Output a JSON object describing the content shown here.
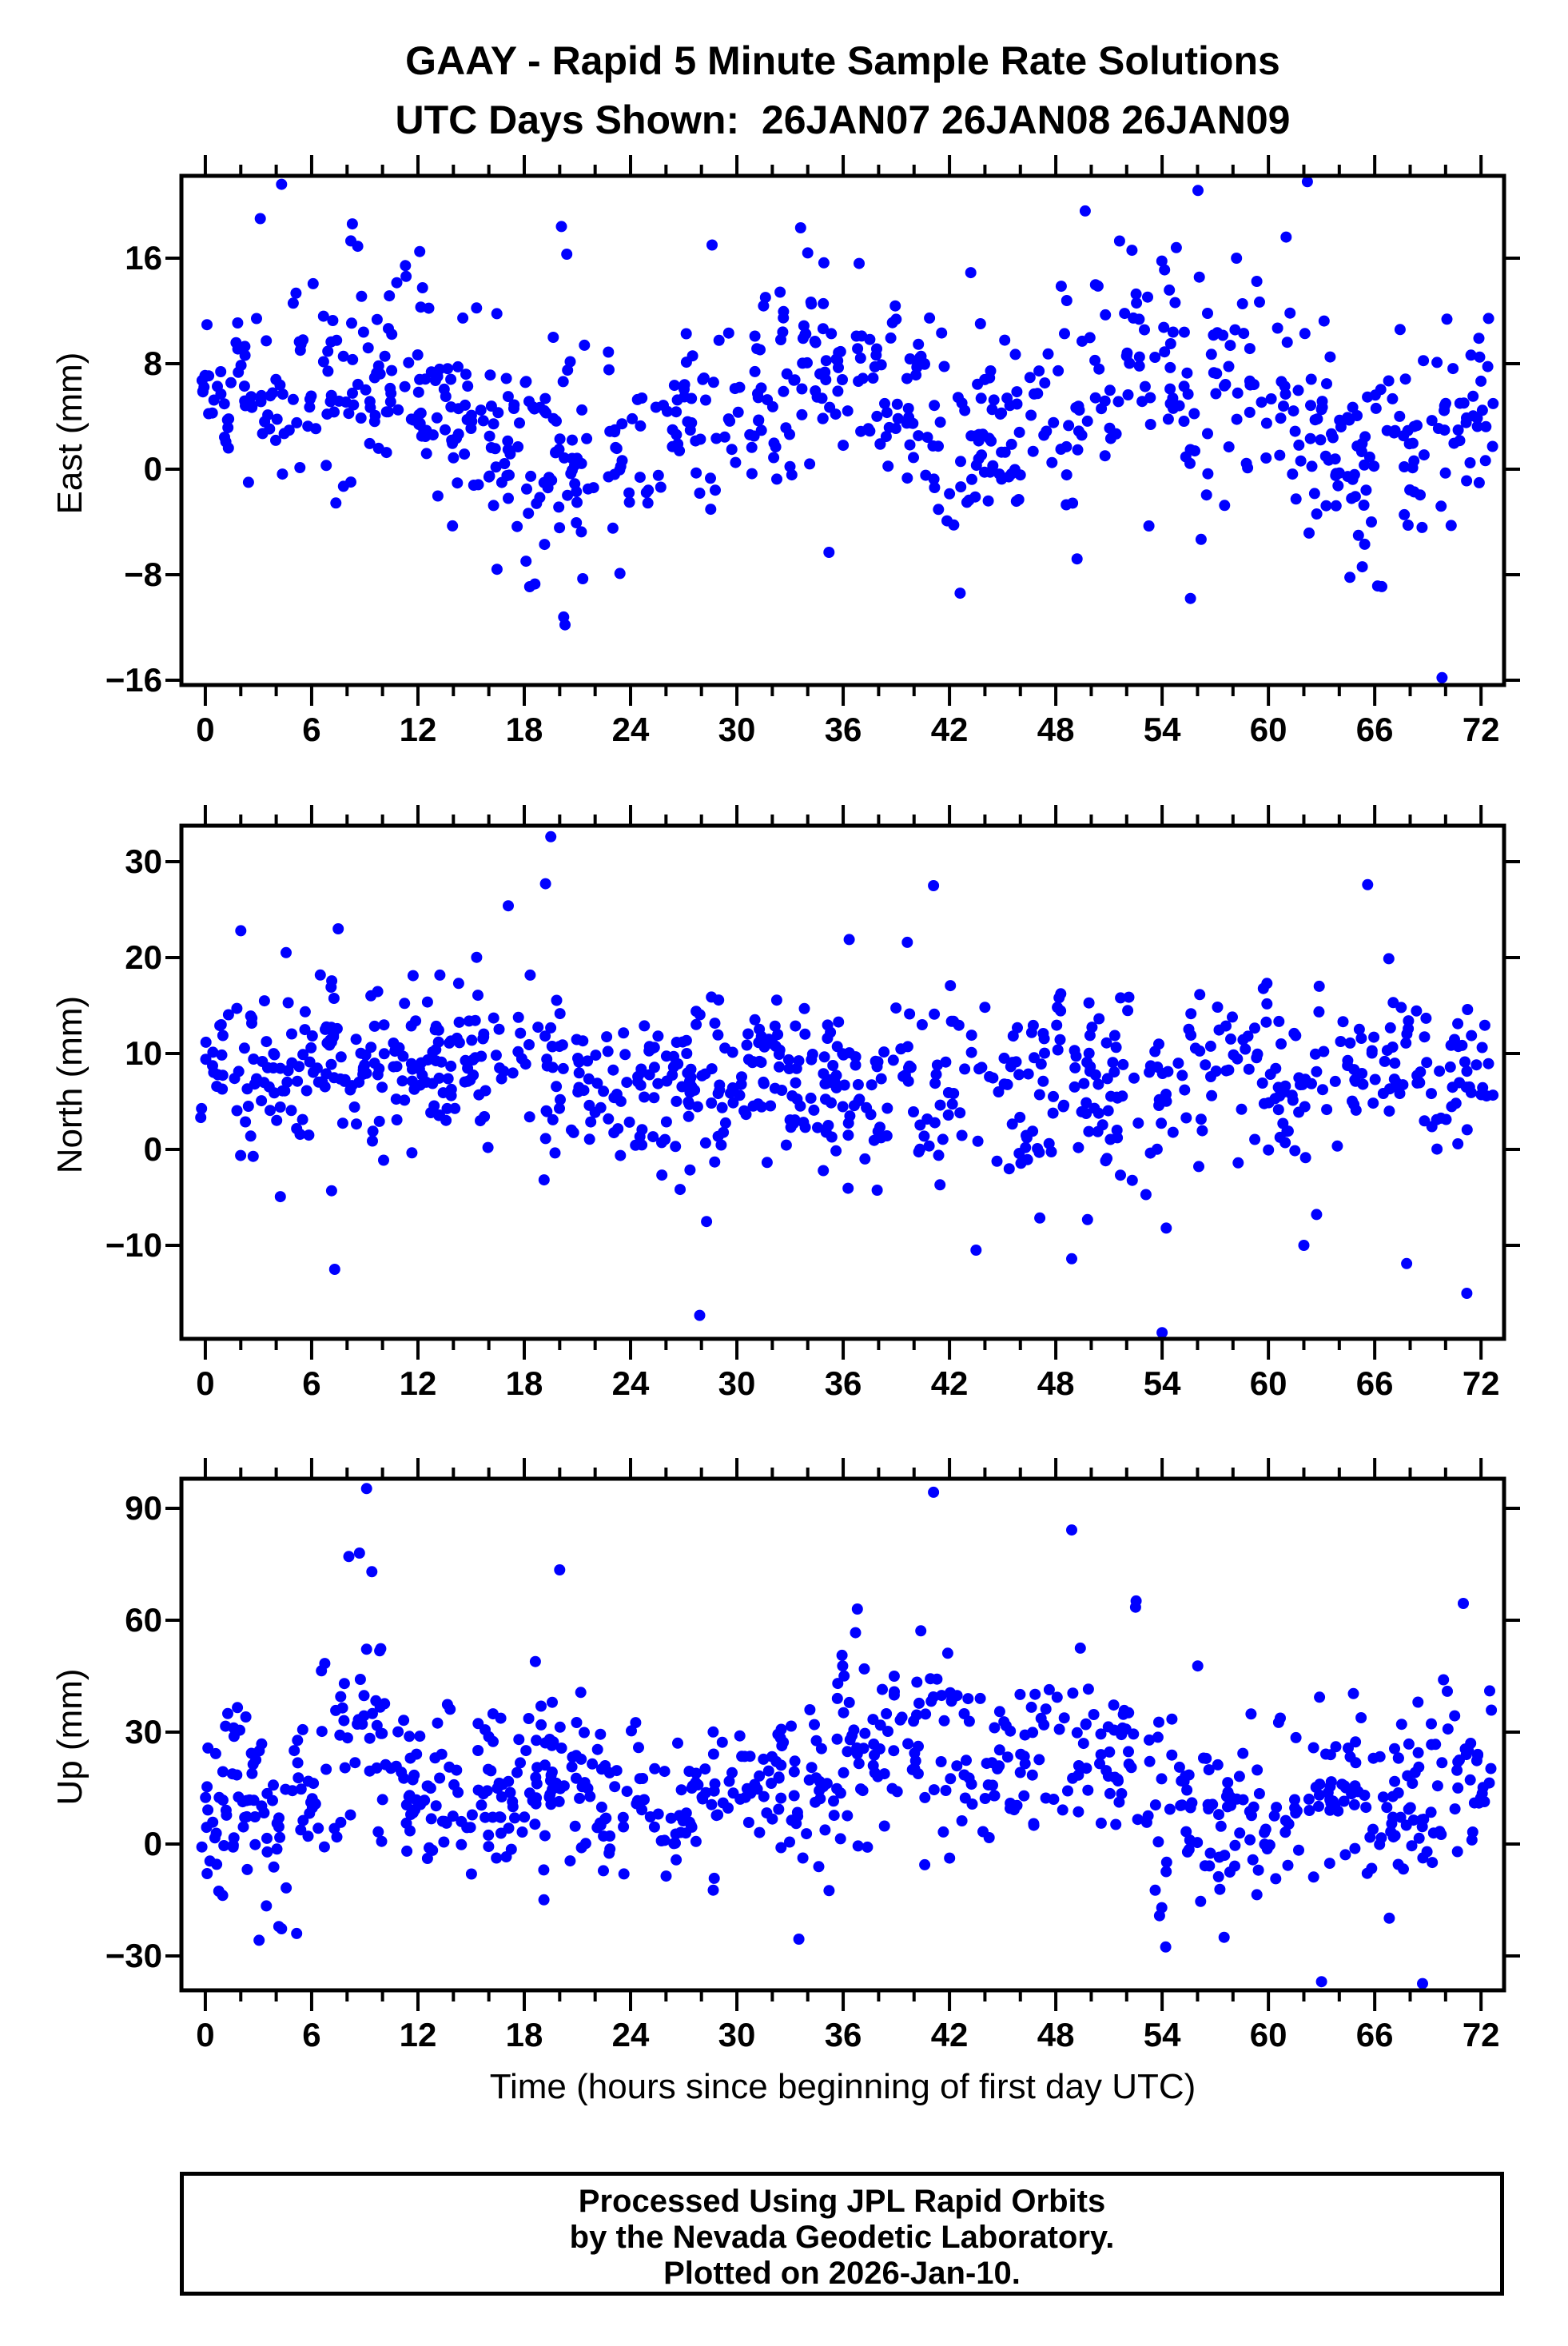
{
  "title": {
    "line1": "GAAY - Rapid 5 Minute Sample Rate Solutions",
    "line2": "UTC Days Shown:  26JAN07 26JAN08 26JAN09"
  },
  "footer": {
    "lines": [
      "Processed Using JPL Rapid Orbits",
      "by the Nevada Geodetic Laboratory.",
      "Plotted on 2026-Jan-10."
    ]
  },
  "chart_data": {
    "type": "scatter",
    "title": "GAAY - Rapid 5 Minute Sample Rate Solutions",
    "subtitle": "UTC Days Shown:  26JAN07 26JAN08 26JAN09",
    "marker": {
      "color": "#0000FF",
      "radius_px": 7
    },
    "frame_color": "#000000",
    "x": {
      "label": "Time (hours since beginning of first day UTC)",
      "lim": [
        -1.35,
        73.3
      ],
      "major_ticks": [
        0,
        6,
        12,
        18,
        24,
        30,
        36,
        42,
        48,
        54,
        60,
        66,
        72
      ],
      "minor_step": 2,
      "sample_interval_hours": 0.0833
    },
    "panels": [
      {
        "name": "East",
        "ylabel": "East (mm)",
        "ylim": [
          -16.36,
          22.24
        ],
        "yticks": [
          -16,
          -8,
          0,
          8,
          16
        ],
        "n_points": 780,
        "seed": 42,
        "mean_sd_curve": [
          [
            0,
            5.5,
            2.5
          ],
          [
            2,
            6,
            3
          ],
          [
            4,
            6.5,
            3.5
          ],
          [
            6,
            6,
            4
          ],
          [
            8,
            7,
            4.5
          ],
          [
            10,
            6.5,
            4
          ],
          [
            12,
            5.5,
            4
          ],
          [
            14,
            4,
            3.5
          ],
          [
            16,
            3,
            4
          ],
          [
            18,
            1.5,
            4.5
          ],
          [
            20,
            0.5,
            5
          ],
          [
            22,
            2,
            4
          ],
          [
            24,
            2.5,
            3
          ],
          [
            26,
            3,
            3
          ],
          [
            28,
            3,
            3.5
          ],
          [
            30,
            4,
            3.5
          ],
          [
            32,
            5.5,
            4
          ],
          [
            34,
            8.5,
            3.5
          ],
          [
            36,
            7,
            3.5
          ],
          [
            38,
            5,
            3.5
          ],
          [
            40,
            4,
            3.5
          ],
          [
            42,
            3,
            4
          ],
          [
            44,
            3.5,
            4
          ],
          [
            46,
            3.5,
            4
          ],
          [
            48,
            5,
            4.5
          ],
          [
            50,
            7,
            4.5
          ],
          [
            52,
            8,
            4
          ],
          [
            54,
            7,
            4
          ],
          [
            56,
            5.5,
            4
          ],
          [
            58,
            6,
            4
          ],
          [
            60,
            6.5,
            4
          ],
          [
            62,
            4,
            4
          ],
          [
            64,
            1.5,
            4
          ],
          [
            66,
            0.5,
            4
          ],
          [
            68,
            2,
            4.5
          ],
          [
            70,
            4.5,
            4
          ],
          [
            72,
            5,
            3
          ]
        ],
        "outliers": [
          [
            4.3,
            21.6
          ],
          [
            3.1,
            19.0
          ],
          [
            8.3,
            18.6
          ],
          [
            8.6,
            16.9
          ],
          [
            12.1,
            16.5
          ],
          [
            20.1,
            18.4
          ],
          [
            20.4,
            16.3
          ],
          [
            28.6,
            17.0
          ],
          [
            33.6,
            18.3
          ],
          [
            34.0,
            16.4
          ],
          [
            36.9,
            15.6
          ],
          [
            43.2,
            14.9
          ],
          [
            51.6,
            17.3
          ],
          [
            52.3,
            16.6
          ],
          [
            54.8,
            16.8
          ],
          [
            58.2,
            16.0
          ],
          [
            62.2,
            21.8
          ],
          [
            61.0,
            17.6
          ],
          [
            20.3,
            -11.8
          ],
          [
            18.6,
            -8.7
          ],
          [
            21.3,
            -8.3
          ],
          [
            42.6,
            -9.4
          ],
          [
            55.6,
            -9.8
          ],
          [
            64.6,
            -8.2
          ],
          [
            66.4,
            -8.9
          ],
          [
            69.8,
            -15.8
          ],
          [
            23.4,
            -7.9
          ],
          [
            35.2,
            -6.3
          ],
          [
            49.2,
            -6.8
          ],
          [
            65.3,
            -7.4
          ]
        ]
      },
      {
        "name": "North",
        "ylabel": "North (mm)",
        "ylim": [
          -19.75,
          33.75
        ],
        "yticks": [
          -10,
          0,
          10,
          20,
          30
        ],
        "n_points": 800,
        "seed": 1337,
        "mean_sd_curve": [
          [
            0,
            8,
            2.5
          ],
          [
            2,
            8.5,
            4
          ],
          [
            4,
            7,
            4.5
          ],
          [
            6,
            8.5,
            4.5
          ],
          [
            8,
            9.5,
            4.5
          ],
          [
            10,
            8.5,
            4
          ],
          [
            12,
            8,
            4
          ],
          [
            14,
            8.5,
            4.5
          ],
          [
            16,
            9,
            5
          ],
          [
            18,
            9.5,
            5
          ],
          [
            20,
            8,
            4.5
          ],
          [
            22,
            6.5,
            4
          ],
          [
            24,
            6,
            4
          ],
          [
            26,
            6,
            4.5
          ],
          [
            28,
            6.5,
            5
          ],
          [
            30,
            7,
            4.5
          ],
          [
            32,
            8,
            4.5
          ],
          [
            34,
            7,
            4.5
          ],
          [
            36,
            6,
            4.5
          ],
          [
            38,
            6,
            4.5
          ],
          [
            40,
            6,
            5
          ],
          [
            42,
            5.5,
            5
          ],
          [
            44,
            6,
            4.5
          ],
          [
            46,
            6,
            4.5
          ],
          [
            48,
            7,
            5
          ],
          [
            50,
            7,
            5
          ],
          [
            52,
            6,
            5.5
          ],
          [
            54,
            6,
            5
          ],
          [
            56,
            8,
            5
          ],
          [
            58,
            9.5,
            4.5
          ],
          [
            60,
            8.5,
            4.5
          ],
          [
            62,
            7,
            5
          ],
          [
            64,
            9,
            5
          ],
          [
            66,
            10,
            4.5
          ],
          [
            68,
            8.5,
            4.5
          ],
          [
            70,
            8,
            4.5
          ],
          [
            72,
            8,
            3.5
          ]
        ],
        "outliers": [
          [
            19.5,
            32.6
          ],
          [
            19.2,
            27.7
          ],
          [
            41.1,
            27.5
          ],
          [
            65.6,
            27.6
          ],
          [
            17.1,
            25.4
          ],
          [
            2.0,
            22.8
          ],
          [
            7.5,
            23.0
          ],
          [
            27.9,
            -17.3
          ],
          [
            54.0,
            -19.1
          ],
          [
            7.3,
            -12.5
          ],
          [
            48.9,
            -11.4
          ],
          [
            67.8,
            -11.9
          ],
          [
            43.5,
            -10.5
          ],
          [
            71.2,
            -15.0
          ],
          [
            62.0,
            -10.0
          ]
        ]
      },
      {
        "name": "Up",
        "ylabel": "Up (mm)",
        "ylim": [
          -39.21,
          97.93
        ],
        "yticks": [
          -30,
          0,
          30,
          60,
          90
        ],
        "n_points": 820,
        "seed": 2024,
        "mean_sd_curve": [
          [
            0,
            2,
            10
          ],
          [
            2,
            14,
            12
          ],
          [
            4,
            8,
            13
          ],
          [
            6,
            18,
            14
          ],
          [
            8,
            34,
            16
          ],
          [
            9,
            42,
            16
          ],
          [
            10,
            26,
            14
          ],
          [
            12,
            12,
            10
          ],
          [
            14,
            14,
            11
          ],
          [
            16,
            19,
            12
          ],
          [
            18,
            17,
            12
          ],
          [
            20,
            19,
            13
          ],
          [
            22,
            11,
            10
          ],
          [
            24,
            9,
            10
          ],
          [
            26,
            10,
            10
          ],
          [
            28,
            11,
            10
          ],
          [
            30,
            14,
            11
          ],
          [
            32,
            14,
            11
          ],
          [
            34,
            17,
            11
          ],
          [
            36,
            24,
            13
          ],
          [
            38,
            29,
            13
          ],
          [
            40,
            29,
            14
          ],
          [
            42,
            24,
            13
          ],
          [
            44,
            19,
            12
          ],
          [
            46,
            24,
            12
          ],
          [
            48,
            29,
            12
          ],
          [
            50,
            27,
            12
          ],
          [
            52,
            29,
            14
          ],
          [
            54,
            14,
            14
          ],
          [
            56,
            9,
            12
          ],
          [
            58,
            5,
            11
          ],
          [
            60,
            8,
            11
          ],
          [
            62,
            10,
            11
          ],
          [
            64,
            12,
            10
          ],
          [
            66,
            9,
            11
          ],
          [
            68,
            12,
            12
          ],
          [
            70,
            14,
            11
          ],
          [
            72,
            14,
            10
          ]
        ],
        "outliers": [
          [
            9.1,
            95.3
          ],
          [
            41.1,
            94.3
          ],
          [
            48.9,
            84.2
          ],
          [
            8.7,
            78.0
          ],
          [
            9.4,
            73.0
          ],
          [
            20.0,
            73.5
          ],
          [
            36.8,
            63.0
          ],
          [
            52.5,
            63.5
          ],
          [
            71.0,
            64.5
          ],
          [
            63.0,
            -36.9
          ],
          [
            68.7,
            -37.4
          ],
          [
            54.2,
            -27.6
          ],
          [
            4.3,
            -22.7
          ],
          [
            57.5,
            -25.0
          ],
          [
            33.5,
            -25.5
          ]
        ]
      }
    ]
  }
}
